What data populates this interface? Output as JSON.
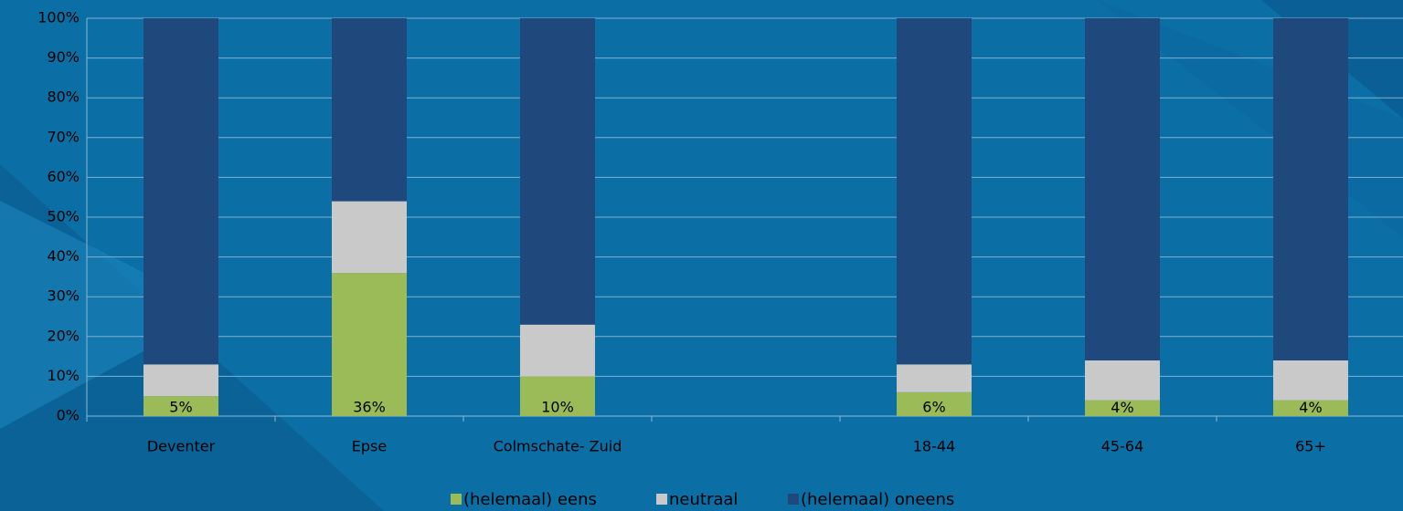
{
  "chart_data": {
    "type": "stacked-bar",
    "categories": [
      "Deventer",
      "Epse",
      "Colmschate- Zuid",
      null,
      "18-44",
      "45-64",
      "65+"
    ],
    "series": [
      {
        "name": "(helemaal) eens",
        "color": "#9bbb59",
        "values": [
          5,
          36,
          10,
          null,
          6,
          4,
          4
        ],
        "value_labels": [
          "5%",
          "36%",
          "10%",
          null,
          "6%",
          "4%",
          "4%"
        ]
      },
      {
        "name": "neutraal",
        "color": "#c9c9c9",
        "values": [
          8,
          18,
          13,
          null,
          7,
          10,
          10
        ]
      },
      {
        "name": "(helemaal) oneens",
        "color": "#1f497d",
        "values": [
          87,
          46,
          77,
          null,
          87,
          86,
          86
        ]
      }
    ],
    "ylim": [
      0,
      100
    ],
    "yticks": [
      {
        "value": 0,
        "label": "0%"
      },
      {
        "value": 10,
        "label": "10%"
      },
      {
        "value": 20,
        "label": "20%"
      },
      {
        "value": 30,
        "label": "30%"
      },
      {
        "value": 40,
        "label": "40%"
      },
      {
        "value": 50,
        "label": "50%"
      },
      {
        "value": 60,
        "label": "60%"
      },
      {
        "value": 70,
        "label": "70%"
      },
      {
        "value": 80,
        "label": "80%"
      },
      {
        "value": 90,
        "label": "90%"
      },
      {
        "value": 100,
        "label": "100%"
      }
    ],
    "grid": true,
    "legend": "bottom"
  }
}
